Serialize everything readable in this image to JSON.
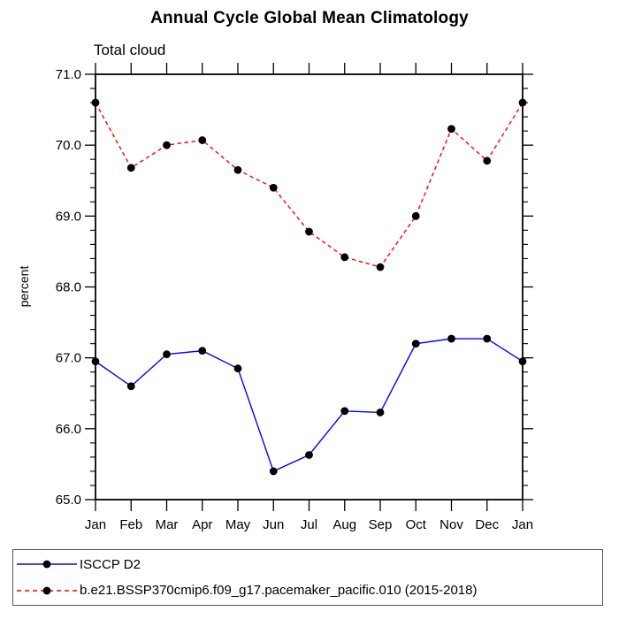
{
  "title": "Annual Cycle Global Mean Climatology",
  "subtitle": "Total cloud",
  "y_axis_label": "percent",
  "colors": {
    "obs_line": "#0000ff",
    "model_line": "#ff0000",
    "marker": "#000000",
    "axis": "#000000"
  },
  "chart_data": {
    "type": "line",
    "title": "Annual Cycle Global Mean Climatology",
    "subtitle": "Total cloud",
    "xlabel": "",
    "ylabel": "percent",
    "categories": [
      "Jan",
      "Feb",
      "Mar",
      "Apr",
      "May",
      "Jun",
      "Jul",
      "Aug",
      "Sep",
      "Oct",
      "Nov",
      "Dec",
      "Jan"
    ],
    "series": [
      {
        "name": "ISCCP D2",
        "color": "#0000ff",
        "line_style": "solid",
        "marker": "filled-circle",
        "marker_color": "#000000",
        "values": [
          66.95,
          66.6,
          67.05,
          67.1,
          66.85,
          65.4,
          65.63,
          66.25,
          66.23,
          67.2,
          67.27,
          67.27,
          66.95
        ]
      },
      {
        "name": "b.e21.BSSP370cmip6.f09_g17.pacemaker_pacific.010 (2015-2018)",
        "color": "#ff0000",
        "line_style": "dashed",
        "marker": "filled-circle",
        "marker_color": "#000000",
        "values": [
          70.6,
          69.68,
          70.0,
          70.07,
          69.65,
          69.4,
          68.78,
          68.42,
          68.28,
          69.0,
          70.23,
          69.78,
          70.6
        ]
      }
    ],
    "ylim": [
      65.0,
      71.0
    ],
    "ytick_step": 1.0,
    "yminor_step": 0.2,
    "yticklabels": [
      "65.0",
      "66.0",
      "67.0",
      "68.0",
      "69.0",
      "70.0",
      "71.0"
    ],
    "grid": "off",
    "legend_position": "bottom-box"
  },
  "legend": {
    "entries": [
      {
        "label": "ISCCP D2"
      },
      {
        "label": "b.e21.BSSP370cmip6.f09_g17.pacemaker_pacific.010 (2015-2018)"
      }
    ]
  }
}
